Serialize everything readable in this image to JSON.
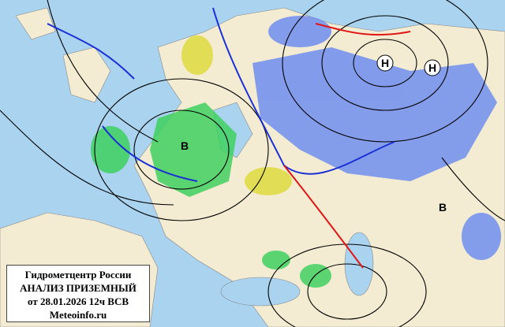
{
  "map": {
    "colors": {
      "sea": "#a9d3ef",
      "land": "#f4ecd2",
      "isobar": "#000000",
      "cold_front": "#1a2fd6",
      "warm_front": "#e01515",
      "snow": "#6f8ff0",
      "rain": "#3fd060",
      "fog": "#d8d820"
    },
    "pressure_centers": [
      {
        "label": "Н",
        "type": "low"
      },
      {
        "label": "Н",
        "type": "low"
      },
      {
        "label": "В",
        "type": "high"
      },
      {
        "label": "В",
        "type": "high"
      }
    ]
  },
  "legend": {
    "line1": "Гидрометцентр России",
    "line2": "АНАЛИЗ ПРИЗЕМНЫЙ",
    "line3": "от 28.01.2026 12ч ВСВ",
    "line4": "Meteoinfo.ru"
  }
}
